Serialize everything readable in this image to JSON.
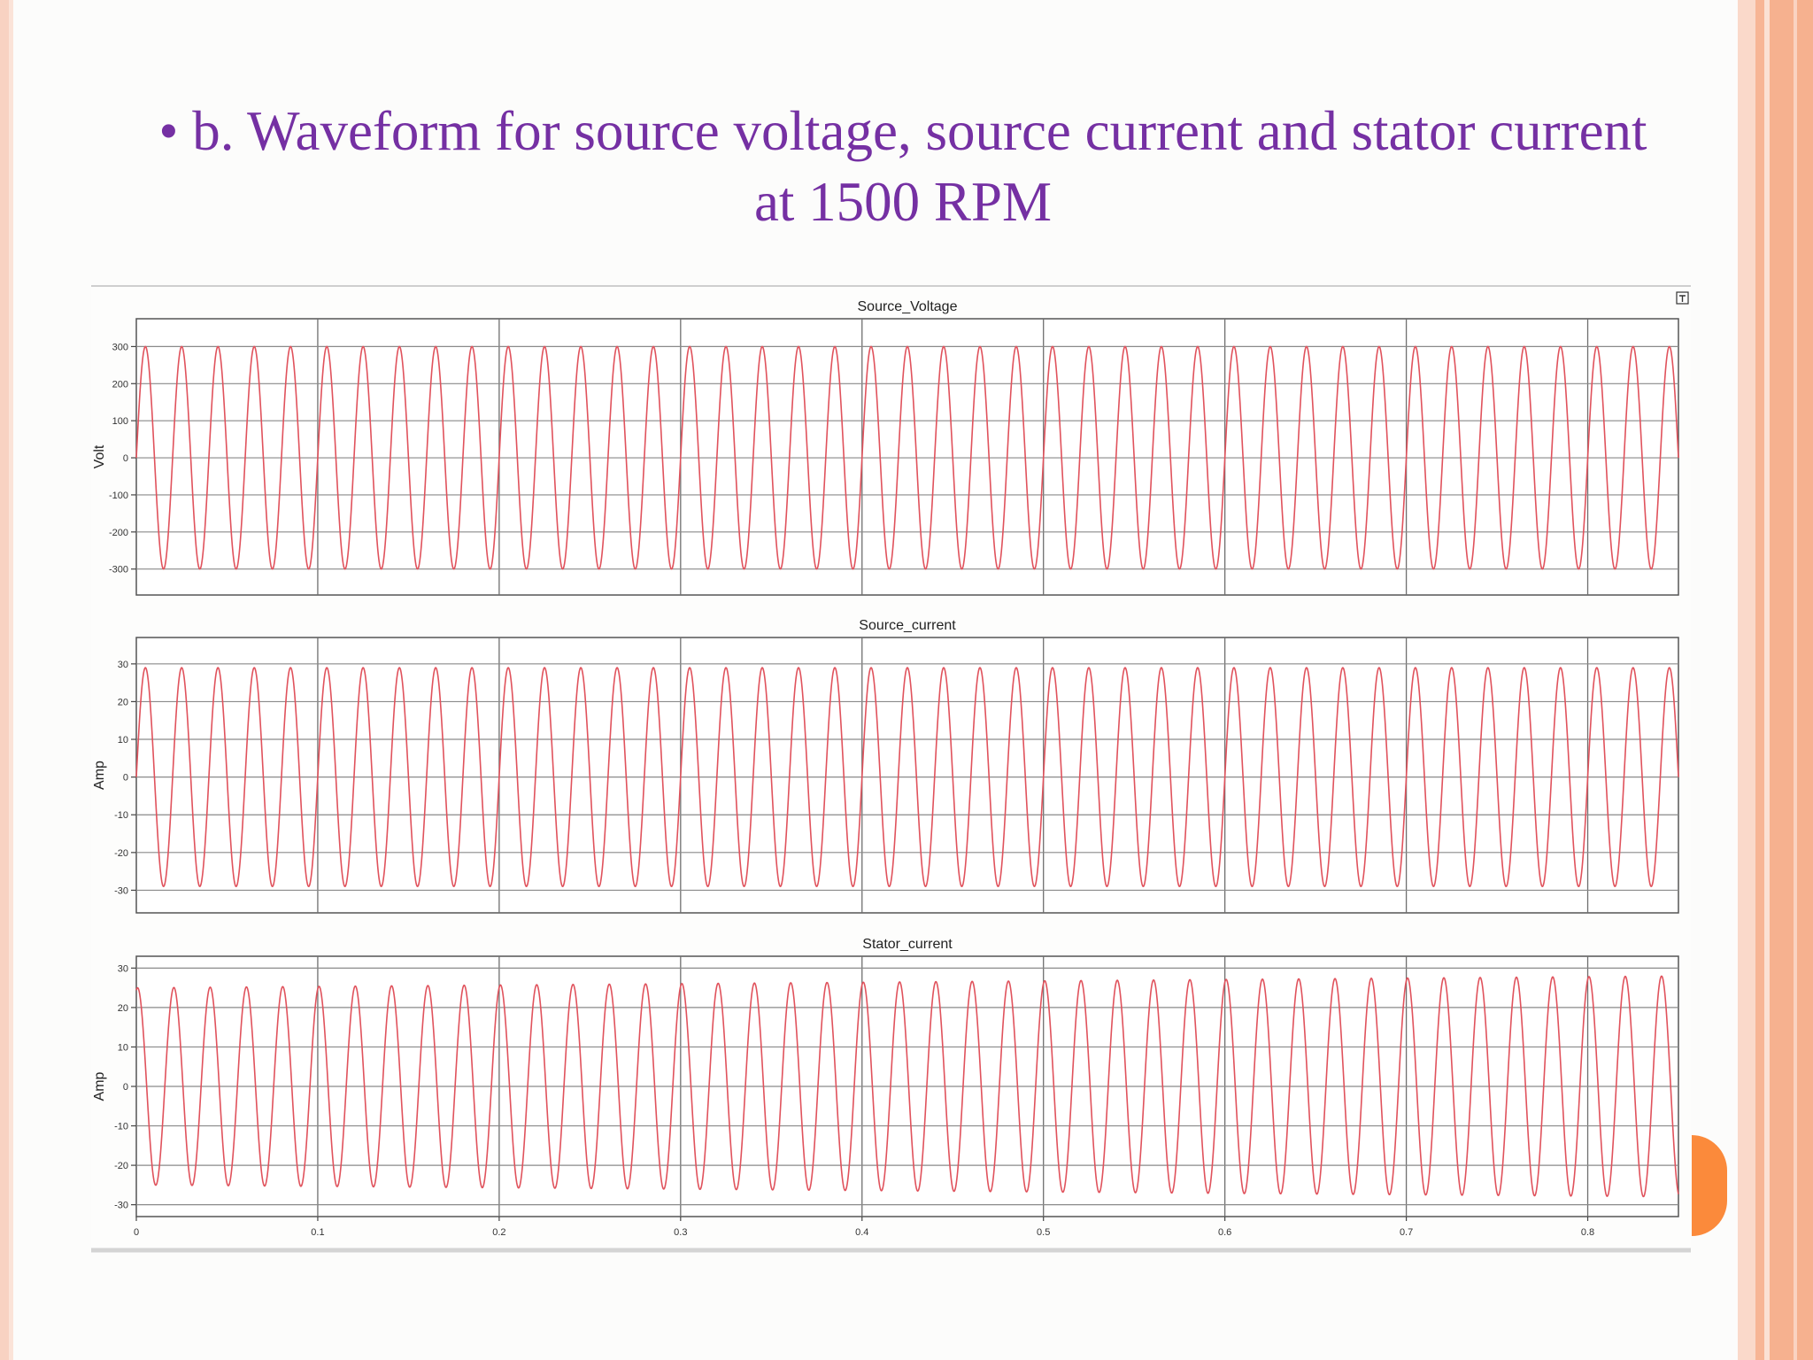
{
  "slide": {
    "title_line1": "• b. Waveform for source voltage, source current and stator current",
    "title_line2": "at 1500 RPM"
  },
  "colors": {
    "title": "#7530a3",
    "waveform": "#e0525c",
    "accent_orange": "#fb8a3b",
    "border_salmon": "#f6b18f"
  },
  "icons": {
    "expand": "expand-icon"
  },
  "chart_data": [
    {
      "type": "line",
      "title": "Source_Voltage",
      "xlabel": "",
      "ylabel": "Volt",
      "xlim": [
        0,
        0.85
      ],
      "ylim": [
        -370,
        375
      ],
      "yticks": [
        300,
        200,
        100,
        0,
        -100,
        -200,
        -300
      ],
      "ytick_labels": [
        "300",
        "200",
        "100",
        "0",
        "-100",
        "-200",
        "-300"
      ],
      "xticks": [
        0,
        0.1,
        0.2,
        0.3,
        0.4,
        0.5,
        0.6,
        0.7,
        0.8
      ],
      "show_xtick_labels": false,
      "grid": true,
      "series": [
        {
          "amplitude": 300,
          "frequency_hz": 50,
          "amplitude_end": 300,
          "phase": 0
        }
      ]
    },
    {
      "type": "line",
      "title": "Source_current",
      "xlabel": "",
      "ylabel": "Amp",
      "xlim": [
        0,
        0.85
      ],
      "ylim": [
        -36,
        37
      ],
      "yticks": [
        30,
        20,
        10,
        0,
        -10,
        -20,
        -30
      ],
      "ytick_labels": [
        "30",
        "20",
        "10",
        "0",
        "-10",
        "-20",
        "-30"
      ],
      "xticks": [
        0,
        0.1,
        0.2,
        0.3,
        0.4,
        0.5,
        0.6,
        0.7,
        0.8
      ],
      "show_xtick_labels": false,
      "grid": true,
      "series": [
        {
          "amplitude": 29,
          "frequency_hz": 50,
          "amplitude_end": 29,
          "phase": 0
        }
      ]
    },
    {
      "type": "line",
      "title": "Stator_current",
      "xlabel": "",
      "ylabel": "Amp",
      "xlim": [
        0,
        0.85
      ],
      "ylim": [
        -33,
        33
      ],
      "yticks": [
        30,
        20,
        10,
        0,
        -10,
        -20,
        -30
      ],
      "ytick_labels": [
        "30",
        "20",
        "10",
        "0",
        "-10",
        "-20",
        "-30"
      ],
      "xticks": [
        0,
        0.1,
        0.2,
        0.3,
        0.4,
        0.5,
        0.6,
        0.7,
        0.8
      ],
      "xtick_labels": [
        "0",
        "0.1",
        "0.2",
        "0.3",
        "0.4",
        "0.5",
        "0.6",
        "0.7",
        "0.8"
      ],
      "show_xtick_labels": true,
      "grid": true,
      "series": [
        {
          "amplitude": 25,
          "frequency_hz": 50,
          "amplitude_end": 28,
          "phase": 1.35
        }
      ]
    }
  ]
}
